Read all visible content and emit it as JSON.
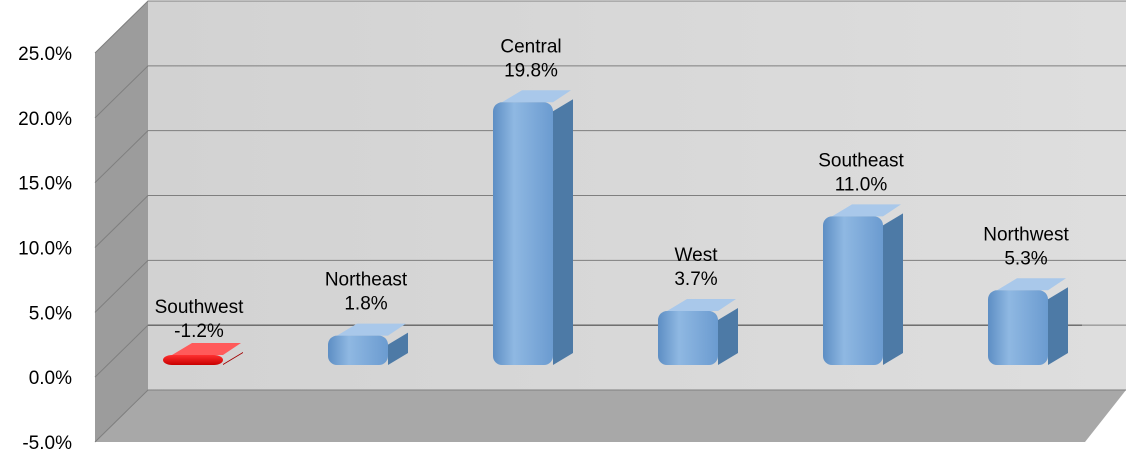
{
  "chart_data": {
    "type": "bar",
    "categories": [
      "Southwest",
      "Northeast",
      "Central",
      "West",
      "Southeast",
      "Northwest"
    ],
    "values": [
      -1.2,
      1.8,
      19.8,
      3.7,
      11.0,
      5.3
    ],
    "value_labels": [
      "-1.2%",
      "1.8%",
      "19.8%",
      "3.7%",
      "11.0%",
      "5.3%"
    ],
    "ylim": [
      -5,
      25
    ],
    "yticks": [
      "-5.0%",
      "0.0%",
      "5.0%",
      "10.0%",
      "15.0%",
      "20.0%",
      "25.0%"
    ],
    "title": "",
    "xlabel": "",
    "ylabel": "",
    "grid": true,
    "style": "3d",
    "colors": {
      "bar": "#7aa7d6",
      "bar_side": "#4d7aa6",
      "negative_bar": "#e00000",
      "negative_side": "#a00000",
      "wall": "#d9d9d9",
      "side_wall": "#9c9c9c",
      "floor": "#a8a8a8",
      "gridline": "#7f7f7f"
    }
  }
}
